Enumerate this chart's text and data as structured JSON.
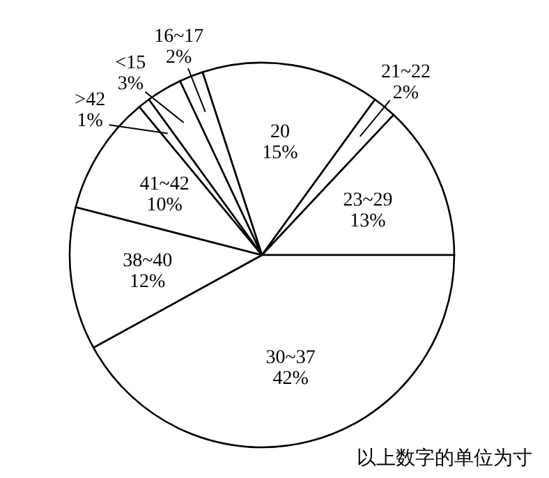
{
  "chart_data": {
    "type": "pie",
    "categories": [
      "20",
      "21~22",
      "23~29",
      "30~37",
      "38~40",
      "41~42",
      ">42",
      "<15",
      "16~17"
    ],
    "values": [
      15,
      2,
      13,
      42,
      12,
      10,
      1,
      3,
      2
    ],
    "value_labels": [
      "15%",
      "2%",
      "13%",
      "42%",
      "12%",
      "10%",
      "1%",
      "3%",
      "2%"
    ],
    "colors": [
      "#ffffff",
      "#ffffff",
      "#ffffff",
      "#ffffff",
      "#ffffff",
      "#ffffff",
      "#ffffff",
      "#ffffff",
      "#ffffff"
    ],
    "annotations": [
      "以上数字的单位为寸"
    ]
  }
}
